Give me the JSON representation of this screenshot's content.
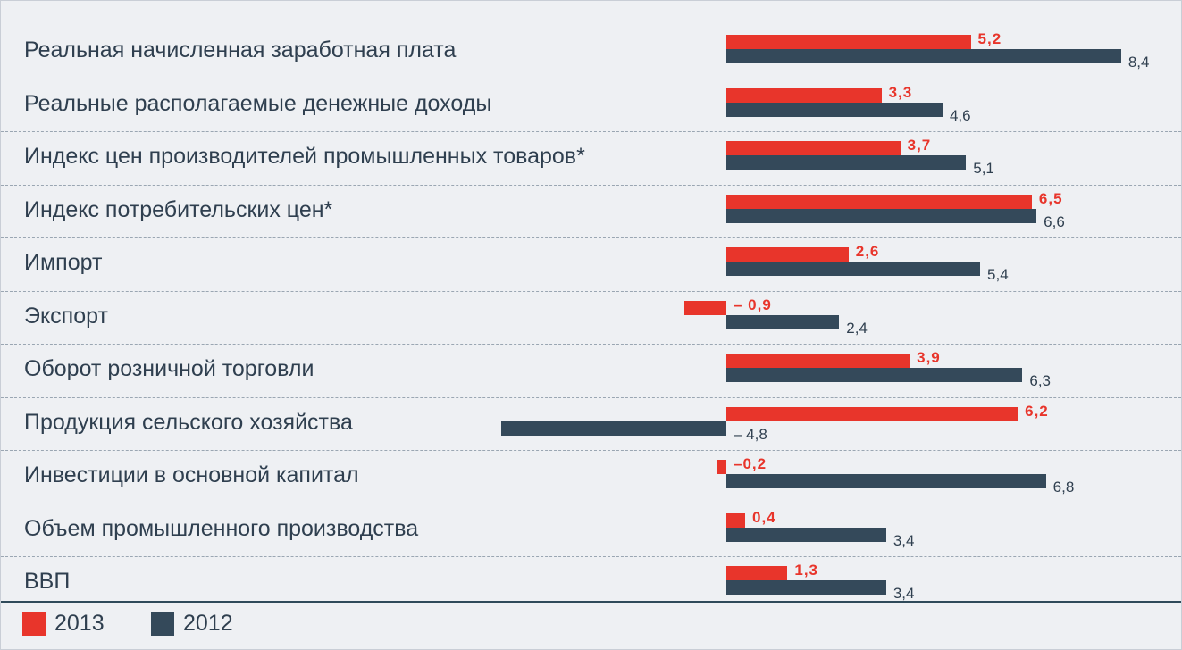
{
  "chart_data": {
    "type": "bar",
    "orientation": "horizontal",
    "categories": [
      "Реальная начисленная заработная плата",
      "Реальные располагаемые денежные доходы",
      "Индекс цен производителей промышленных товаров*",
      "Индекс потребительских цен*",
      "Импорт",
      "Экспорт",
      "Оборот розничной торговли",
      "Продукция сельского хозяйства",
      "Инвестиции в основной капитал",
      "Объем промышленного производства",
      "ВВП"
    ],
    "series": [
      {
        "name": "2013",
        "color": "#e8352b",
        "values": [
          5.2,
          3.3,
          3.7,
          6.5,
          2.6,
          -0.9,
          3.9,
          6.2,
          -0.2,
          0.4,
          1.3
        ],
        "labels": [
          "5,2",
          "3,3",
          "3,7",
          "6,5",
          "2,6",
          "– 0,9",
          "3,9",
          "6,2",
          "–0,2",
          "0,4",
          "1,3"
        ]
      },
      {
        "name": "2012",
        "color": "#34495a",
        "values": [
          8.4,
          4.6,
          5.1,
          6.6,
          5.4,
          2.4,
          6.3,
          -4.8,
          6.8,
          3.4,
          3.4
        ],
        "labels": [
          "8,4",
          "4,6",
          "5,1",
          "6,6",
          "5,4",
          "2,4",
          "6,3",
          "– 4,8",
          "6,8",
          "3,4",
          "3,4"
        ]
      }
    ],
    "legend": [
      "2013",
      "2012"
    ],
    "legend_position": "bottom-left",
    "grid": false
  }
}
